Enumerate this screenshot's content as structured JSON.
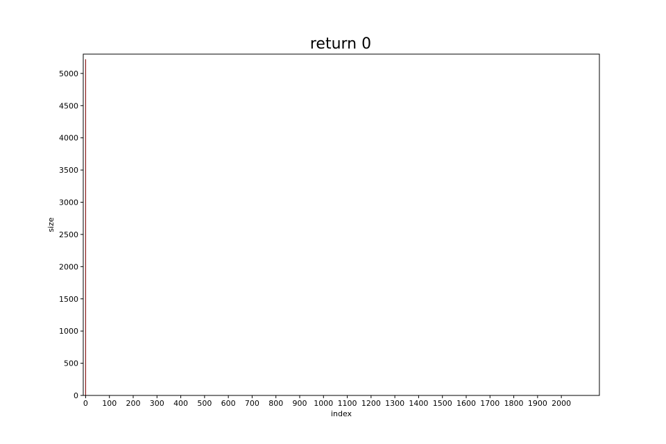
{
  "chart_data": {
    "type": "bar",
    "title": "return 0",
    "xlabel": "index",
    "ylabel": "size",
    "xlim": [
      -10,
      2160
    ],
    "ylim": [
      0,
      5300
    ],
    "x_ticks": [
      0,
      100,
      200,
      300,
      400,
      500,
      600,
      700,
      800,
      900,
      1000,
      1100,
      1200,
      1300,
      1400,
      1500,
      1600,
      1700,
      1800,
      1900,
      2000
    ],
    "y_ticks": [
      0,
      500,
      1000,
      1500,
      2000,
      2500,
      3000,
      3500,
      4000,
      4500,
      5000
    ],
    "grid": false,
    "series": [
      {
        "name": "size",
        "color": "#8b1a1a",
        "points": [
          {
            "x": 0,
            "y": 5220
          }
        ]
      }
    ]
  }
}
